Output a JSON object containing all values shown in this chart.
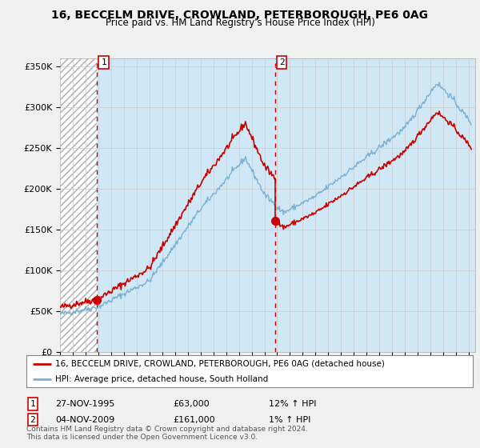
{
  "title": "16, BECCELM DRIVE, CROWLAND, PETERBOROUGH, PE6 0AG",
  "subtitle": "Price paid vs. HM Land Registry's House Price Index (HPI)",
  "ylim": [
    0,
    360000
  ],
  "yticks": [
    0,
    50000,
    100000,
    150000,
    200000,
    250000,
    300000,
    350000
  ],
  "ytick_labels": [
    "£0",
    "£50K",
    "£100K",
    "£150K",
    "£200K",
    "£250K",
    "£300K",
    "£350K"
  ],
  "bg_color": "#f0f0f0",
  "hpi_color": "#7ab0d4",
  "price_color": "#cc0000",
  "hpi_fill_color": "#d0e8f5",
  "sale1_date": 1995.91,
  "sale1_price": 63000,
  "sale2_date": 2009.84,
  "sale2_price": 161000,
  "legend_line1": "16, BECCELM DRIVE, CROWLAND, PETERBOROUGH, PE6 0AG (detached house)",
  "legend_line2": "HPI: Average price, detached house, South Holland",
  "footnote": "Contains HM Land Registry data © Crown copyright and database right 2024.\nThis data is licensed under the Open Government Licence v3.0."
}
